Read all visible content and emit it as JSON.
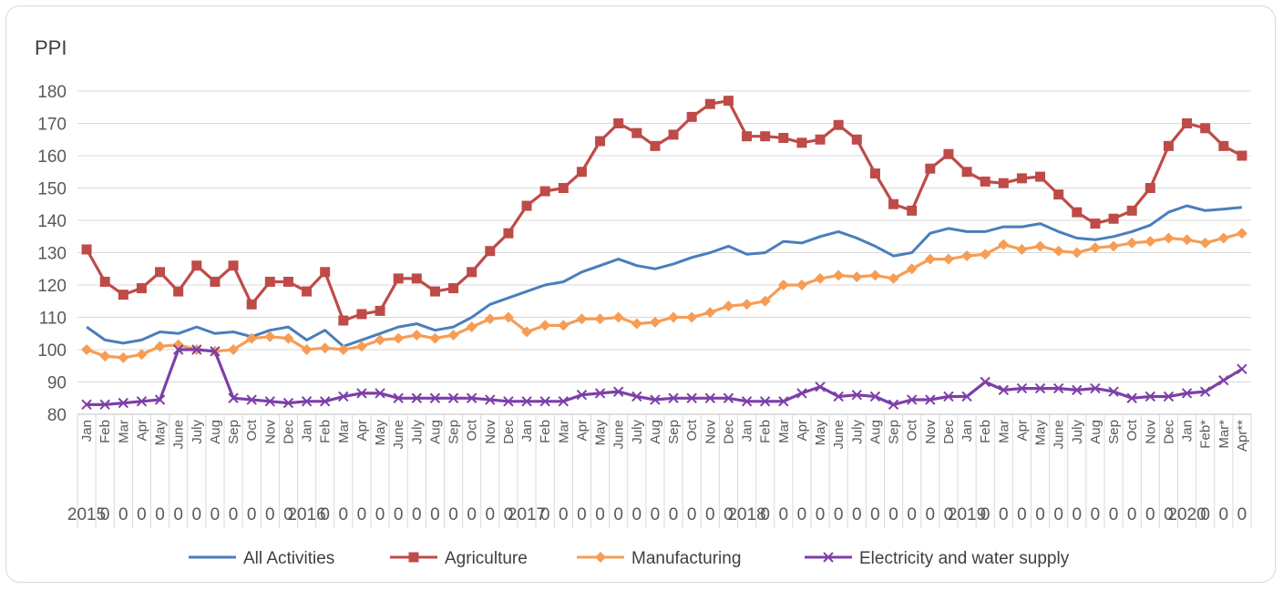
{
  "chart_data": {
    "type": "line",
    "ylabel": "PPI",
    "ylim": [
      80,
      180
    ],
    "yticks": [
      80,
      90,
      100,
      110,
      120,
      130,
      140,
      150,
      160,
      170,
      180
    ],
    "grid": true,
    "legend_position": "bottom",
    "month_labels": [
      "Jan",
      "Feb",
      "Mar",
      "Apr",
      "May",
      "June",
      "July",
      "Aug",
      "Sep",
      "Oct",
      "Nov",
      "Dec",
      "Jan",
      "Feb",
      "Mar",
      "Apr",
      "May",
      "June",
      "July",
      "Aug",
      "Sep",
      "Oct",
      "Nov",
      "Dec",
      "Jan",
      "Feb",
      "Mar",
      "Apr",
      "May",
      "June",
      "July",
      "Aug",
      "Sep",
      "Oct",
      "Nov",
      "Dec",
      "Jan",
      "Feb",
      "Mar",
      "Apr",
      "May",
      "June",
      "July",
      "Aug",
      "Sep",
      "Oct",
      "Nov",
      "Dec",
      "Jan",
      "Feb",
      "Mar",
      "Apr",
      "May",
      "June",
      "July",
      "Aug",
      "Sep",
      "Oct",
      "Nov",
      "Dec",
      "Jan",
      "Feb*",
      "Mar*",
      "Apr**"
    ],
    "year_labels": [
      "2015",
      "0",
      "0",
      "0",
      "0",
      "0",
      "0",
      "0",
      "0",
      "0",
      "0",
      "0",
      "2016",
      "0",
      "0",
      "0",
      "0",
      "0",
      "0",
      "0",
      "0",
      "0",
      "0",
      "0",
      "2017",
      "0",
      "0",
      "0",
      "0",
      "0",
      "0",
      "0",
      "0",
      "0",
      "0",
      "0",
      "2018",
      "0",
      "0",
      "0",
      "0",
      "0",
      "0",
      "0",
      "0",
      "0",
      "0",
      "0",
      "2019",
      "0",
      "0",
      "0",
      "0",
      "0",
      "0",
      "0",
      "0",
      "0",
      "0",
      "0",
      "2020",
      "0",
      "0",
      "0"
    ],
    "series": [
      {
        "name": "All Activities",
        "color": "#4a7ebb",
        "marker": "none",
        "values": [
          107,
          103,
          102,
          103,
          105.5,
          105,
          107,
          105,
          105.5,
          104,
          106,
          107,
          103,
          106,
          101,
          103,
          105,
          107,
          108,
          106,
          107,
          110,
          114,
          116,
          118,
          120,
          121,
          124,
          126,
          128,
          126,
          125,
          126.5,
          128.5,
          130,
          132,
          129.5,
          130,
          133.5,
          133,
          135,
          136.5,
          134.5,
          132,
          129,
          130,
          136,
          137.5,
          136.5,
          136.5,
          138,
          138,
          139,
          136.5,
          134.5,
          134,
          135,
          136.5,
          138.5,
          142.5,
          144.5,
          143,
          143.5,
          144
        ]
      },
      {
        "name": "Agriculture",
        "color": "#be4b48",
        "marker": "square",
        "values": [
          131,
          121,
          117,
          119,
          124,
          118,
          126,
          121,
          126,
          114,
          121,
          121,
          118,
          124,
          109,
          111,
          112,
          122,
          122,
          118,
          119,
          124,
          130.5,
          136,
          144.5,
          149,
          150,
          155,
          164.5,
          170,
          167,
          163,
          166.5,
          172,
          176,
          177,
          166,
          166,
          165.5,
          164,
          165,
          169.5,
          165,
          154.5,
          145,
          143,
          156,
          160.5,
          155,
          152,
          151.5,
          153,
          153.5,
          148,
          142.5,
          139,
          140.5,
          143,
          150,
          163,
          170,
          168.5,
          163,
          160
        ]
      },
      {
        "name": "Manufacturing",
        "color": "#f59d56",
        "marker": "diamond",
        "values": [
          100,
          98,
          97.5,
          98.5,
          101,
          101.5,
          100,
          99.5,
          100,
          103.5,
          104,
          103.5,
          100,
          100.5,
          100,
          101,
          103,
          103.5,
          104.5,
          103.5,
          104.5,
          107,
          109.5,
          110,
          105.5,
          107.5,
          107.5,
          109.5,
          109.5,
          110,
          108,
          108.5,
          110,
          110,
          111.5,
          113.5,
          114,
          115,
          120,
          120,
          122,
          123,
          122.5,
          123,
          122,
          125,
          128,
          128,
          129,
          129.5,
          132.5,
          131,
          132,
          130.5,
          130,
          131.5,
          132,
          133,
          133.5,
          134.5,
          134,
          133,
          134.5,
          136
        ]
      },
      {
        "name": "Electricity and water supply",
        "color": "#7d3fa8",
        "marker": "x",
        "values": [
          83,
          83,
          83.5,
          84,
          84.5,
          100,
          100,
          99.5,
          85,
          84.5,
          84,
          83.5,
          84,
          84,
          85.5,
          86.5,
          86.5,
          85,
          85,
          85,
          85,
          85,
          84.5,
          84,
          84,
          84,
          84,
          86,
          86.5,
          87,
          85.5,
          84.5,
          85,
          85,
          85,
          85,
          84,
          84,
          84,
          86.5,
          88.5,
          85.5,
          86,
          85.5,
          83,
          84.5,
          84.5,
          85.5,
          85.5,
          90,
          87.5,
          88,
          88,
          88,
          87.5,
          88,
          87,
          85,
          85.5,
          85.5,
          86.5,
          87,
          90.5,
          94
        ]
      }
    ]
  }
}
